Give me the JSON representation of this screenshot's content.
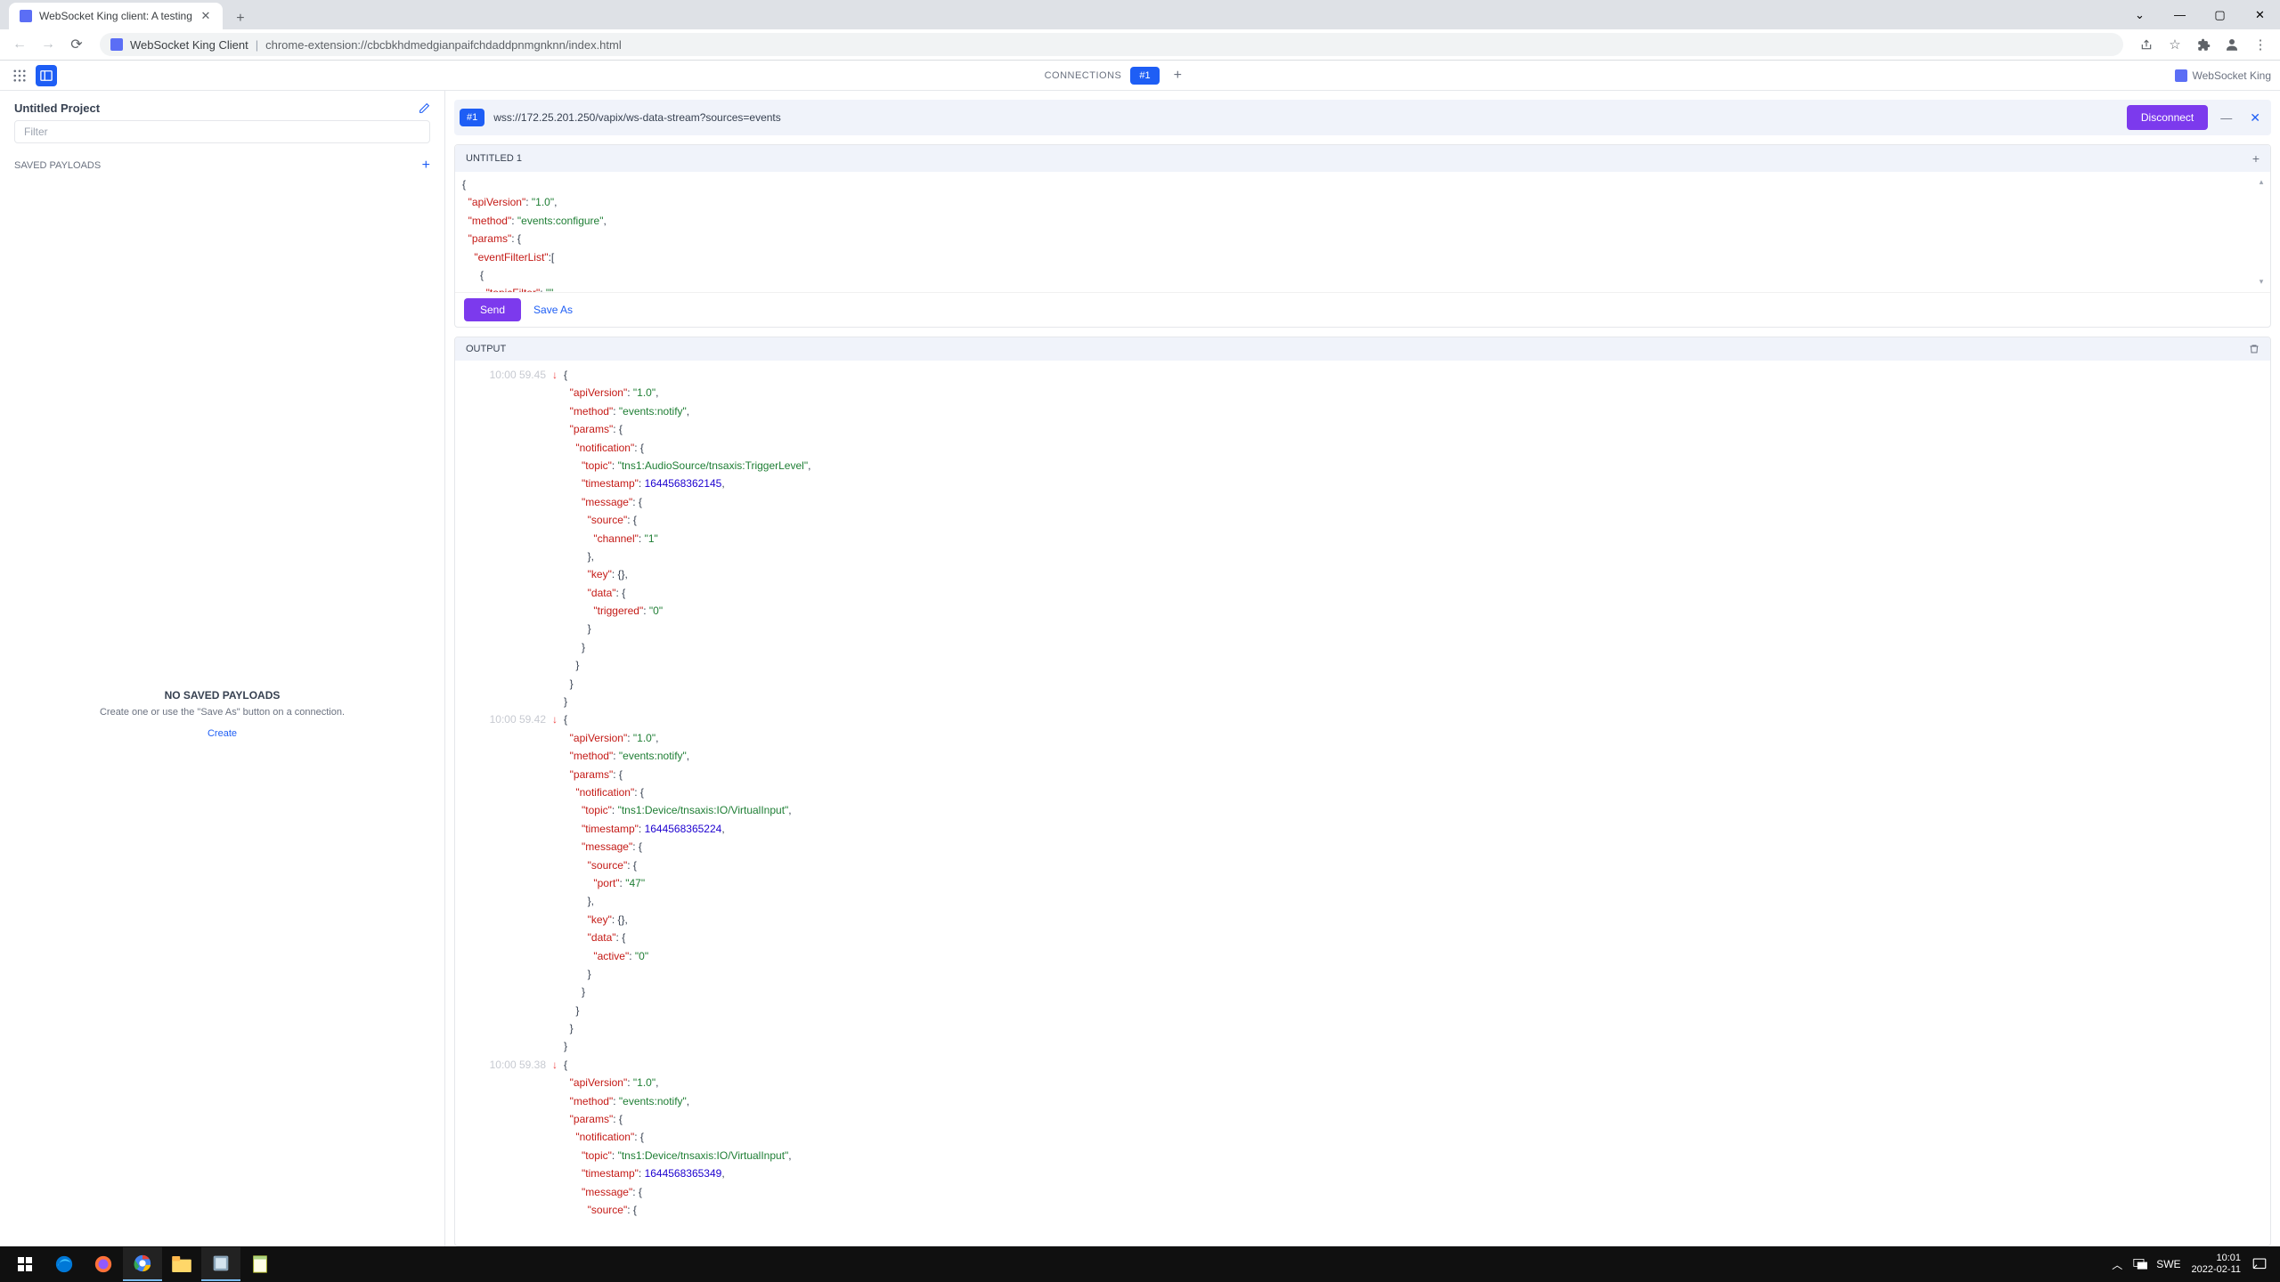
{
  "browser": {
    "tab_title": "WebSocket King client: A testing",
    "url_host": "WebSocket King Client",
    "url_path": "chrome-extension://cbcbkhdmedgianpaifchdaddpnmgnknn/index.html"
  },
  "topbar": {
    "connections_label": "CONNECTIONS",
    "connection_badge": "#1",
    "brand": "WebSocket King"
  },
  "sidebar": {
    "project_title": "Untitled Project",
    "filter_placeholder": "Filter",
    "saved_payloads_label": "SAVED PAYLOADS",
    "empty_title": "NO SAVED PAYLOADS",
    "empty_sub": "Create one or use the \"Save As\" button on a connection.",
    "empty_create": "Create"
  },
  "connection": {
    "badge": "#1",
    "url": "wss://172.25.201.250/vapix/ws-data-stream?sources=events",
    "disconnect_label": "Disconnect"
  },
  "editor": {
    "tab_label": "UNTITLED 1",
    "send_label": "Send",
    "save_as_label": "Save As",
    "lines": "{\n  \"apiVersion\": \"1.0\",\n  \"method\": \"events:configure\",\n  \"params\": {\n    \"eventFilterList\":[\n      {\n        \"topicFilter\":\"\""
  },
  "output": {
    "label": "OUTPUT",
    "messages": [
      {
        "time": "10:00 59.45",
        "body": "{\n  \"apiVersion\": \"1.0\",\n  \"method\": \"events:notify\",\n  \"params\": {\n    \"notification\": {\n      \"topic\": \"tns1:AudioSource/tnsaxis:TriggerLevel\",\n      \"timestamp\": 1644568362145,\n      \"message\": {\n        \"source\": {\n          \"channel\": \"1\"\n        },\n        \"key\": {},\n        \"data\": {\n          \"triggered\": \"0\"\n        }\n      }\n    }\n  }\n}"
      },
      {
        "time": "10:00 59.42",
        "body": "{\n  \"apiVersion\": \"1.0\",\n  \"method\": \"events:notify\",\n  \"params\": {\n    \"notification\": {\n      \"topic\": \"tns1:Device/tnsaxis:IO/VirtualInput\",\n      \"timestamp\": 1644568365224,\n      \"message\": {\n        \"source\": {\n          \"port\": \"47\"\n        },\n        \"key\": {},\n        \"data\": {\n          \"active\": \"0\"\n        }\n      }\n    }\n  }\n}"
      },
      {
        "time": "10:00 59.38",
        "body": "{\n  \"apiVersion\": \"1.0\",\n  \"method\": \"events:notify\",\n  \"params\": {\n    \"notification\": {\n      \"topic\": \"tns1:Device/tnsaxis:IO/VirtualInput\",\n      \"timestamp\": 1644568365349,\n      \"message\": {\n        \"source\": {"
      }
    ]
  },
  "taskbar": {
    "lang": "SWE",
    "time": "10:01",
    "date": "2022-02-11"
  }
}
